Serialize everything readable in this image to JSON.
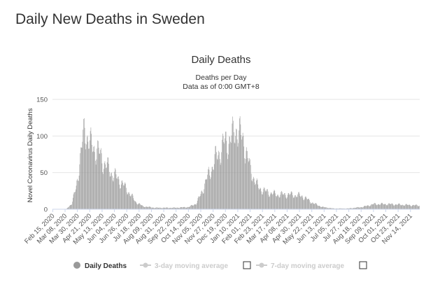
{
  "page": {
    "title": "Daily New Deaths in Sweden"
  },
  "chart_data": {
    "type": "bar",
    "title": "Daily Deaths",
    "subtitle_line1": "Deaths per Day",
    "subtitle_line2": "Data as of 0:00 GMT+8",
    "ylabel": "Novel Coronavirus Daily Deaths",
    "xlabel": "",
    "ylim": [
      0,
      150
    ],
    "yticks": [
      "0",
      "50",
      "100",
      "150"
    ],
    "x_start": "2020-02-15",
    "x_end": "2021-11-30",
    "xtick_labels": [
      "Feb 15, 2020",
      "Mar 08, 2020",
      "Mar 30, 2020",
      "Apr 21, 2020",
      "May 13, 2020",
      "Jun 04, 2020",
      "Jun 26, 2020",
      "Jul 18, 2020",
      "Aug 09, 2020",
      "Aug 31, 2020",
      "Sep 22, 2020",
      "Oct 14, 2020",
      "Nov 05, 2020",
      "Nov 27, 2020",
      "Dec 19, 2020",
      "Jan 10, 2021",
      "Feb 01, 2021",
      "Feb 23, 2021",
      "Mar 17, 2021",
      "Apr 08, 2021",
      "Apr 30, 2021",
      "May 22, 2021",
      "Jun 13, 2021",
      "Jul 05, 2021",
      "Jul 27, 2021",
      "Aug 18, 2021",
      "Sep 09, 2021",
      "Oct 01, 2021",
      "Oct 23, 2021",
      "Nov 14, 2021"
    ],
    "grid": true,
    "bar_color": "#999999",
    "series": [
      {
        "name": "Daily Deaths",
        "daily_profile": [
          [
            "2020-02-15",
            0
          ],
          [
            "2020-03-10",
            0
          ],
          [
            "2020-03-20",
            8
          ],
          [
            "2020-03-28",
            30
          ],
          [
            "2020-04-03",
            65
          ],
          [
            "2020-04-08",
            90
          ],
          [
            "2020-04-12",
            110
          ],
          [
            "2020-04-16",
            102
          ],
          [
            "2020-04-22",
            88
          ],
          [
            "2020-05-05",
            80
          ],
          [
            "2020-05-15",
            65
          ],
          [
            "2020-06-01",
            48
          ],
          [
            "2020-06-15",
            38
          ],
          [
            "2020-07-01",
            22
          ],
          [
            "2020-07-12",
            10
          ],
          [
            "2020-07-25",
            4
          ],
          [
            "2020-08-15",
            2
          ],
          [
            "2020-09-20",
            2
          ],
          [
            "2020-10-15",
            3
          ],
          [
            "2020-10-28",
            8
          ],
          [
            "2020-11-05",
            20
          ],
          [
            "2020-11-15",
            40
          ],
          [
            "2020-12-01",
            68
          ],
          [
            "2020-12-15",
            88
          ],
          [
            "2021-01-02",
            100
          ],
          [
            "2021-01-08",
            112
          ],
          [
            "2021-01-14",
            102
          ],
          [
            "2021-01-22",
            90
          ],
          [
            "2021-02-01",
            55
          ],
          [
            "2021-02-15",
            30
          ],
          [
            "2021-03-01",
            24
          ],
          [
            "2021-03-20",
            20
          ],
          [
            "2021-04-15",
            20
          ],
          [
            "2021-05-05",
            18
          ],
          [
            "2021-05-25",
            8
          ],
          [
            "2021-06-10",
            3
          ],
          [
            "2021-06-30",
            1
          ],
          [
            "2021-07-25",
            1
          ],
          [
            "2021-08-20",
            3
          ],
          [
            "2021-09-10",
            7
          ],
          [
            "2021-10-05",
            7
          ],
          [
            "2021-11-30",
            5
          ]
        ]
      }
    ],
    "legend": {
      "placement": "bottom",
      "items": [
        {
          "label": "Daily Deaths",
          "active": true
        },
        {
          "label": "3-day moving average",
          "active": false
        },
        {
          "label": "7-day moving average",
          "active": false
        }
      ]
    }
  }
}
